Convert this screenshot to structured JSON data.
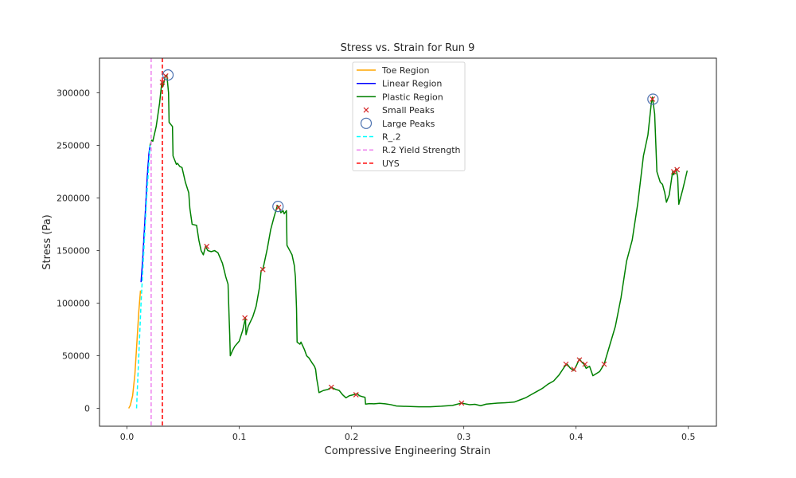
{
  "chart_data": {
    "type": "line",
    "title": "Stress vs. Strain for Run 9",
    "xlabel": "Compressive Engineering Strain",
    "ylabel": "Stress (Pa)",
    "xlim": [
      -0.0245,
      0.525
    ],
    "ylim": [
      -17000,
      333000
    ],
    "x_ticks": [
      0.0,
      0.1,
      0.2,
      0.3,
      0.4,
      0.5
    ],
    "x_tick_labels": [
      "0.0",
      "0.1",
      "0.2",
      "0.3",
      "0.4",
      "0.5"
    ],
    "y_ticks": [
      0,
      50000,
      100000,
      150000,
      200000,
      250000,
      300000
    ],
    "y_tick_labels": [
      "0",
      "50000",
      "100000",
      "150000",
      "200000",
      "250000",
      "300000"
    ],
    "grid": false,
    "legend_position": "top-center",
    "legend": [
      {
        "label": "Toe Region",
        "kind": "line",
        "color": "#ffa500",
        "dash": "solid"
      },
      {
        "label": "Linear Region",
        "kind": "line",
        "color": "#0000ff",
        "dash": "solid"
      },
      {
        "label": "Plastic Region",
        "kind": "line",
        "color": "#008000",
        "dash": "solid"
      },
      {
        "label": "Small Peaks",
        "kind": "x-marker",
        "color": "#d62728"
      },
      {
        "label": "Large Peaks",
        "kind": "circle-marker",
        "color": "#4c72b0"
      },
      {
        "label": "R_.2",
        "kind": "line",
        "color": "#00ffff",
        "dash": "dashed"
      },
      {
        "label": "R.2 Yield Strength",
        "kind": "line",
        "color": "#ee82ee",
        "dash": "dashed"
      },
      {
        "label": "UYS",
        "kind": "line",
        "color": "#ff0000",
        "dash": "dashed"
      }
    ],
    "series": [
      {
        "name": "Toe Region",
        "color": "#ffa500",
        "dash": "solid",
        "points": [
          [
            0.0015,
            0
          ],
          [
            0.003,
            3000
          ],
          [
            0.005,
            12000
          ],
          [
            0.007,
            32000
          ],
          [
            0.009,
            66000
          ],
          [
            0.0105,
            92000
          ],
          [
            0.012,
            112000
          ]
        ]
      },
      {
        "name": "Linear Region",
        "color": "#0000ff",
        "dash": "solid",
        "points": [
          [
            0.0125,
            120000
          ],
          [
            0.014,
            142000
          ],
          [
            0.016,
            180000
          ],
          [
            0.018,
            220000
          ],
          [
            0.0195,
            242000
          ],
          [
            0.0205,
            250000
          ]
        ]
      },
      {
        "name": "Plastic Region",
        "color": "#008000",
        "dash": "solid",
        "points": [
          [
            0.0205,
            250000
          ],
          [
            0.022,
            255000
          ],
          [
            0.023,
            254000
          ],
          [
            0.026,
            268000
          ],
          [
            0.029,
            290000
          ],
          [
            0.031,
            310000
          ],
          [
            0.032,
            306000
          ],
          [
            0.0335,
            313000
          ],
          [
            0.034,
            316000
          ],
          [
            0.0355,
            317000
          ],
          [
            0.037,
            300000
          ],
          [
            0.0375,
            272000
          ],
          [
            0.039,
            270000
          ],
          [
            0.0405,
            268000
          ],
          [
            0.041,
            240000
          ],
          [
            0.044,
            232000
          ],
          [
            0.045,
            233000
          ],
          [
            0.047,
            230000
          ],
          [
            0.049,
            229000
          ],
          [
            0.052,
            215000
          ],
          [
            0.055,
            205000
          ],
          [
            0.056,
            190000
          ],
          [
            0.058,
            175000
          ],
          [
            0.062,
            174000
          ],
          [
            0.064,
            160000
          ],
          [
            0.066,
            150000
          ],
          [
            0.068,
            146000
          ],
          [
            0.07,
            154000
          ],
          [
            0.072,
            150000
          ],
          [
            0.075,
            149000
          ],
          [
            0.078,
            150000
          ],
          [
            0.081,
            148000
          ],
          [
            0.085,
            138000
          ],
          [
            0.088,
            125000
          ],
          [
            0.09,
            118000
          ],
          [
            0.091,
            85000
          ],
          [
            0.0915,
            70000
          ],
          [
            0.092,
            50000
          ],
          [
            0.094,
            55000
          ],
          [
            0.096,
            59000
          ],
          [
            0.1,
            64000
          ],
          [
            0.103,
            74000
          ],
          [
            0.1055,
            86000
          ],
          [
            0.106,
            70000
          ],
          [
            0.108,
            78000
          ],
          [
            0.112,
            87000
          ],
          [
            0.115,
            97000
          ],
          [
            0.118,
            115000
          ],
          [
            0.1195,
            131000
          ],
          [
            0.121,
            132000
          ],
          [
            0.122,
            137000
          ],
          [
            0.125,
            152000
          ],
          [
            0.128,
            170000
          ],
          [
            0.131,
            182000
          ],
          [
            0.134,
            193000
          ],
          [
            0.136,
            190000
          ],
          [
            0.137,
            186000
          ],
          [
            0.139,
            188000
          ],
          [
            0.14,
            185000
          ],
          [
            0.142,
            188000
          ],
          [
            0.1425,
            155000
          ],
          [
            0.145,
            150000
          ],
          [
            0.147,
            146000
          ],
          [
            0.149,
            136000
          ],
          [
            0.15,
            125000
          ],
          [
            0.151,
            95000
          ],
          [
            0.1515,
            63000
          ],
          [
            0.154,
            61000
          ],
          [
            0.155,
            63000
          ],
          [
            0.158,
            56000
          ],
          [
            0.16,
            50000
          ],
          [
            0.162,
            48000
          ],
          [
            0.165,
            43000
          ],
          [
            0.167,
            40000
          ],
          [
            0.168,
            37000
          ],
          [
            0.169,
            28000
          ],
          [
            0.17,
            22000
          ],
          [
            0.171,
            15000
          ],
          [
            0.175,
            17000
          ],
          [
            0.179,
            18000
          ],
          [
            0.182,
            20000
          ],
          [
            0.186,
            18000
          ],
          [
            0.189,
            17000
          ],
          [
            0.192,
            13000
          ],
          [
            0.195,
            10000
          ],
          [
            0.198,
            12000
          ],
          [
            0.202,
            13000
          ],
          [
            0.205,
            14000
          ],
          [
            0.207,
            12000
          ],
          [
            0.21,
            11000
          ],
          [
            0.212,
            10500
          ],
          [
            0.2125,
            4000
          ],
          [
            0.216,
            4500
          ],
          [
            0.22,
            4300
          ],
          [
            0.225,
            4800
          ],
          [
            0.23,
            4300
          ],
          [
            0.235,
            3500
          ],
          [
            0.24,
            2200
          ],
          [
            0.25,
            1800
          ],
          [
            0.26,
            1500
          ],
          [
            0.27,
            1500
          ],
          [
            0.28,
            2000
          ],
          [
            0.29,
            2800
          ],
          [
            0.298,
            5000
          ],
          [
            0.305,
            3500
          ],
          [
            0.31,
            3800
          ],
          [
            0.315,
            2500
          ],
          [
            0.32,
            4000
          ],
          [
            0.33,
            5000
          ],
          [
            0.34,
            5500
          ],
          [
            0.345,
            6000
          ],
          [
            0.35,
            8000
          ],
          [
            0.355,
            10000
          ],
          [
            0.36,
            13000
          ],
          [
            0.365,
            16000
          ],
          [
            0.37,
            19000
          ],
          [
            0.375,
            23000
          ],
          [
            0.38,
            26000
          ],
          [
            0.385,
            32000
          ],
          [
            0.39,
            40000
          ],
          [
            0.392,
            42000
          ],
          [
            0.395,
            38000
          ],
          [
            0.398,
            36000
          ],
          [
            0.4,
            40000
          ],
          [
            0.403,
            47000
          ],
          [
            0.405,
            44000
          ],
          [
            0.407,
            42000
          ],
          [
            0.409,
            38000
          ],
          [
            0.412,
            40000
          ],
          [
            0.415,
            31000
          ],
          [
            0.418,
            33000
          ],
          [
            0.421,
            35000
          ],
          [
            0.425,
            42000
          ],
          [
            0.43,
            60000
          ],
          [
            0.435,
            78000
          ],
          [
            0.44,
            105000
          ],
          [
            0.445,
            140000
          ],
          [
            0.45,
            160000
          ],
          [
            0.455,
            195000
          ],
          [
            0.46,
            240000
          ],
          [
            0.464,
            260000
          ],
          [
            0.467,
            290000
          ],
          [
            0.468,
            296000
          ],
          [
            0.47,
            280000
          ],
          [
            0.472,
            225000
          ],
          [
            0.475,
            215000
          ],
          [
            0.477,
            213000
          ],
          [
            0.479,
            205000
          ],
          [
            0.4805,
            196000
          ],
          [
            0.483,
            203000
          ],
          [
            0.486,
            225000
          ],
          [
            0.487,
            222000
          ],
          [
            0.489,
            228000
          ],
          [
            0.4905,
            220000
          ],
          [
            0.4915,
            194000
          ],
          [
            0.495,
            208000
          ],
          [
            0.499,
            226000
          ]
        ]
      },
      {
        "name": "R_.2",
        "color": "#00ffff",
        "dash": "dashed",
        "points": [
          [
            0.0085,
            0
          ],
          [
            0.0105,
            50000
          ],
          [
            0.0125,
            100000
          ],
          [
            0.015,
            150000
          ],
          [
            0.0175,
            200000
          ],
          [
            0.0205,
            250000
          ]
        ]
      }
    ],
    "vertical_lines": [
      {
        "name": "R.2 Yield Strength",
        "x": 0.0215,
        "color": "#ee82ee",
        "dash": "dashed"
      },
      {
        "name": "UYS",
        "x": 0.0315,
        "color": "#ff0000",
        "dash": "dashed"
      }
    ],
    "small_peaks": [
      [
        0.0315,
        310000
      ],
      [
        0.0345,
        316000
      ],
      [
        0.071,
        154000
      ],
      [
        0.105,
        86000
      ],
      [
        0.121,
        132000
      ],
      [
        0.135,
        191000
      ],
      [
        0.182,
        20000
      ],
      [
        0.204,
        13000
      ],
      [
        0.298,
        5000
      ],
      [
        0.391,
        42000
      ],
      [
        0.398,
        37000
      ],
      [
        0.403,
        46000
      ],
      [
        0.408,
        42000
      ],
      [
        0.425,
        42000
      ],
      [
        0.468,
        294000
      ],
      [
        0.487,
        225000
      ],
      [
        0.49,
        227000
      ]
    ],
    "large_peaks": [
      [
        0.0365,
        317000
      ],
      [
        0.1345,
        192000
      ],
      [
        0.4685,
        294000
      ]
    ]
  }
}
